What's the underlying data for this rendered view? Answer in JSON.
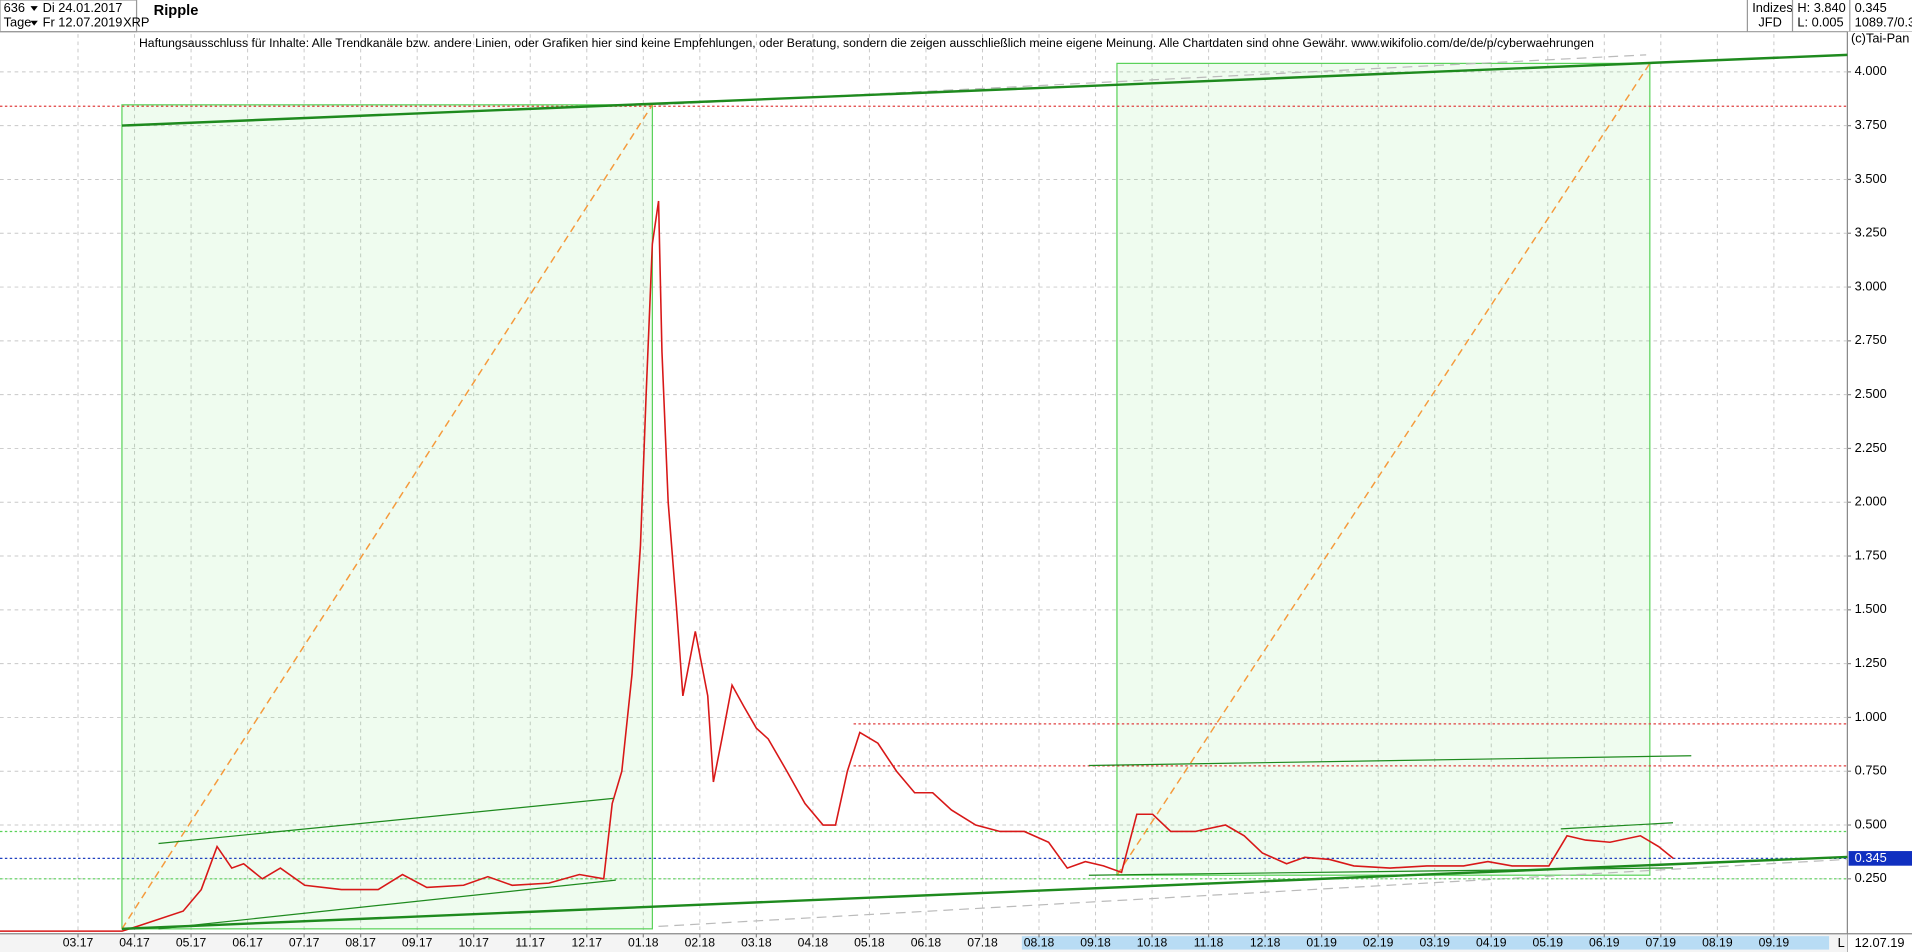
{
  "toolbar": {
    "count": "636",
    "start": "Di 24.01.2017",
    "period": "Tage",
    "end": "Fr 12.07.2019",
    "symbol": "XRP",
    "name": "Ripple",
    "index_label": "Indizes",
    "source": "JFD",
    "high": "H: 3.840",
    "low": "L: 0.005",
    "last": "0.345",
    "extra": "1089.7/0.3"
  },
  "chart_data": {
    "type": "line",
    "annotation": "Haftungsausschluss für Inhalte: Alle Trendkanäle bzw. andere Linien, oder Grafiken hier sind keine Empfehlungen, oder Beratung, sondern die zeigen ausschließlich meine eigene Meinung. Alle Chartdaten sind ohne Gewähr.  www.wikifolio.com/de/de/p/cyberwaehrungen",
    "copyright": "(c)Tai-Pan",
    "x": [
      -1.38,
      0.78,
      1.06,
      1.86,
      2.18,
      2.46,
      2.72,
      2.93,
      3.26,
      3.58,
      4.01,
      4.66,
      5.31,
      5.74,
      6.17,
      6.82,
      7.25,
      7.68,
      8.33,
      8.87,
      9.3,
      9.45,
      9.62,
      9.8,
      9.95,
      10.05,
      10.16,
      10.27,
      10.33,
      10.44,
      10.59,
      10.7,
      10.92,
      11.14,
      11.24,
      11.39,
      11.57,
      11.78,
      12.0,
      12.21,
      12.54,
      12.86,
      13.18,
      13.4,
      13.61,
      13.83,
      14.15,
      14.48,
      14.8,
      15.12,
      15.45,
      15.88,
      16.31,
      16.74,
      17.17,
      17.5,
      17.82,
      18.14,
      18.46,
      18.73,
      19.01,
      19.33,
      19.76,
      20.3,
      20.63,
      20.95,
      21.38,
      21.7,
      22.14,
      22.57,
      23.21,
      23.86,
      24.51,
      24.94,
      25.37,
      26.02,
      26.34,
      26.67,
      27.1,
      27.64,
      27.96,
      28.22
    ],
    "values": [
      0.007,
      0.007,
      0.03,
      0.1,
      0.2,
      0.4,
      0.3,
      0.32,
      0.25,
      0.3,
      0.22,
      0.2,
      0.2,
      0.27,
      0.21,
      0.22,
      0.26,
      0.22,
      0.23,
      0.27,
      0.25,
      0.6,
      0.75,
      1.2,
      1.8,
      2.5,
      3.2,
      3.4,
      2.7,
      2.0,
      1.5,
      1.1,
      1.4,
      1.1,
      0.7,
      0.9,
      1.15,
      1.05,
      0.95,
      0.9,
      0.75,
      0.6,
      0.5,
      0.5,
      0.75,
      0.93,
      0.88,
      0.75,
      0.65,
      0.65,
      0.57,
      0.5,
      0.47,
      0.47,
      0.42,
      0.3,
      0.33,
      0.31,
      0.28,
      0.55,
      0.55,
      0.47,
      0.47,
      0.5,
      0.45,
      0.37,
      0.32,
      0.35,
      0.34,
      0.31,
      0.3,
      0.31,
      0.31,
      0.33,
      0.31,
      0.31,
      0.45,
      0.43,
      0.42,
      0.45,
      0.4,
      0.345
    ],
    "color": "#d81818",
    "last_value": 0.345,
    "hlines": [
      {
        "value": 3.84,
        "color": "#e04040"
      },
      {
        "value": 0.97,
        "color": "#e04040"
      },
      {
        "value": 0.775,
        "color": "#e04040"
      },
      {
        "value": 0.47,
        "color": "#5ad25a"
      },
      {
        "value": 0.345,
        "color": "#2040c0"
      },
      {
        "value": 0.25,
        "color": "#5ad25a"
      }
    ],
    "xlim": [
      -1.38,
      31.3
    ],
    "ylim": [
      0,
      4.1
    ],
    "grid": true,
    "xticks": [
      {
        "value": 0,
        "label": "03.17"
      },
      {
        "value": 1,
        "label": "04.17"
      },
      {
        "value": 2,
        "label": "05.17"
      },
      {
        "value": 3,
        "label": "06.17"
      },
      {
        "value": 4,
        "label": "07.17"
      },
      {
        "value": 5,
        "label": "08.17"
      },
      {
        "value": 6,
        "label": "09.17"
      },
      {
        "value": 7,
        "label": "10.17"
      },
      {
        "value": 8,
        "label": "11.17"
      },
      {
        "value": 9,
        "label": "12.17"
      },
      {
        "value": 10,
        "label": "01.18"
      },
      {
        "value": 11,
        "label": "02.18"
      },
      {
        "value": 12,
        "label": "03.18"
      },
      {
        "value": 13,
        "label": "04.18"
      },
      {
        "value": 14,
        "label": "05.18"
      },
      {
        "value": 15,
        "label": "06.18"
      },
      {
        "value": 16,
        "label": "07.18"
      },
      {
        "value": 17,
        "label": "08.18"
      },
      {
        "value": 18,
        "label": "09.18"
      },
      {
        "value": 19,
        "label": "10.18"
      },
      {
        "value": 20,
        "label": "11.18"
      },
      {
        "value": 21,
        "label": "12.18"
      },
      {
        "value": 22,
        "label": "01.19"
      },
      {
        "value": 23,
        "label": "02.19"
      },
      {
        "value": 24,
        "label": "03.19"
      },
      {
        "value": 25,
        "label": "04.19"
      },
      {
        "value": 26,
        "label": "05.19"
      },
      {
        "value": 27,
        "label": "06.19"
      },
      {
        "value": 28,
        "label": "07.19"
      },
      {
        "value": 29,
        "label": "08.19"
      },
      {
        "value": 30,
        "label": "09.19"
      }
    ],
    "yticks": [
      {
        "value": 0.25,
        "label": "0.250"
      },
      {
        "value": 0.5,
        "label": "0.500"
      },
      {
        "value": 0.75,
        "label": "0.750"
      },
      {
        "value": 1,
        "label": "1.000"
      },
      {
        "value": 1.25,
        "label": "1.250"
      },
      {
        "value": 1.5,
        "label": "1.500"
      },
      {
        "value": 1.75,
        "label": "1.750"
      },
      {
        "value": 2,
        "label": "2.000"
      },
      {
        "value": 2.25,
        "label": "2.250"
      },
      {
        "value": 2.5,
        "label": "2.500"
      },
      {
        "value": 2.75,
        "label": "2.750"
      },
      {
        "value": 3,
        "label": "3.000"
      },
      {
        "value": 3.25,
        "label": "3.250"
      },
      {
        "value": 3.5,
        "label": "3.500"
      },
      {
        "value": 3.75,
        "label": "3.750"
      },
      {
        "value": 4,
        "label": "4.000"
      }
    ],
    "axis_corner": "L",
    "axis_date": "12.07.19"
  }
}
